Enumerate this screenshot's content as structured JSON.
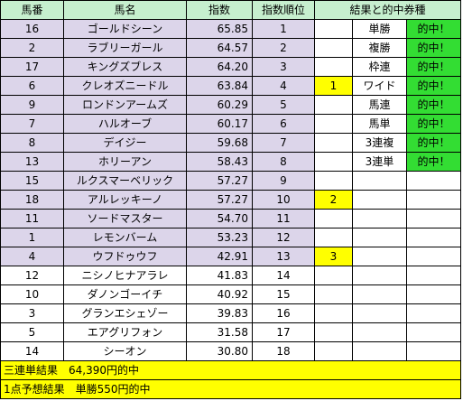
{
  "headers": [
    "馬番",
    "馬名",
    "指数",
    "指数順位",
    "結果と的中券種"
  ],
  "rows": [
    {
      "no": "16",
      "name": "ゴールドシーン",
      "idx": "65.85",
      "rank": "1",
      "mark": "",
      "bet": "単勝",
      "hit": "的中！"
    },
    {
      "no": "2",
      "name": "ラブリーガール",
      "idx": "64.57",
      "rank": "2",
      "mark": "",
      "bet": "複勝",
      "hit": "的中！"
    },
    {
      "no": "17",
      "name": "キングズブレス",
      "idx": "64.20",
      "rank": "3",
      "mark": "",
      "bet": "枠連",
      "hit": "的中！"
    },
    {
      "no": "6",
      "name": "クレオズニードル",
      "idx": "63.84",
      "rank": "4",
      "mark": "1",
      "bet": "ワイド",
      "hit": "的中！"
    },
    {
      "no": "9",
      "name": "ロンドンアームズ",
      "idx": "60.29",
      "rank": "5",
      "mark": "",
      "bet": "馬連",
      "hit": "的中！"
    },
    {
      "no": "7",
      "name": "ハルオーブ",
      "idx": "60.17",
      "rank": "6",
      "mark": "",
      "bet": "馬単",
      "hit": "的中！"
    },
    {
      "no": "8",
      "name": "デイジー",
      "idx": "59.68",
      "rank": "7",
      "mark": "",
      "bet": "3連複",
      "hit": "的中！"
    },
    {
      "no": "13",
      "name": "ホリーアン",
      "idx": "58.43",
      "rank": "8",
      "mark": "",
      "bet": "3連単",
      "hit": "的中！"
    },
    {
      "no": "15",
      "name": "ルクスマーベリック",
      "idx": "57.27",
      "rank": "9",
      "mark": "",
      "bet": "",
      "hit": ""
    },
    {
      "no": "18",
      "name": "アルレッキーノ",
      "idx": "57.27",
      "rank": "10",
      "mark": "2",
      "bet": "",
      "hit": ""
    },
    {
      "no": "11",
      "name": "ソードマスター",
      "idx": "54.70",
      "rank": "11",
      "mark": "",
      "bet": "",
      "hit": ""
    },
    {
      "no": "1",
      "name": "レモンバーム",
      "idx": "53.23",
      "rank": "12",
      "mark": "",
      "bet": "",
      "hit": ""
    },
    {
      "no": "4",
      "name": "ウフドゥウフ",
      "idx": "42.91",
      "rank": "13",
      "mark": "3",
      "bet": "",
      "hit": ""
    },
    {
      "no": "12",
      "name": "ニシノヒナアラレ",
      "idx": "41.83",
      "rank": "14",
      "mark": "",
      "bet": "",
      "hit": ""
    },
    {
      "no": "10",
      "name": "ダノンゴーイチ",
      "idx": "40.92",
      "rank": "15",
      "mark": "",
      "bet": "",
      "hit": ""
    },
    {
      "no": "3",
      "name": "グランエシェゾー",
      "idx": "39.83",
      "rank": "16",
      "mark": "",
      "bet": "",
      "hit": ""
    },
    {
      "no": "5",
      "name": "エアグリフォン",
      "idx": "31.58",
      "rank": "17",
      "mark": "",
      "bet": "",
      "hit": ""
    },
    {
      "no": "14",
      "name": "シーオン",
      "idx": "30.80",
      "rank": "18",
      "mark": "",
      "bet": "",
      "hit": ""
    }
  ],
  "summary": [
    "三連単結果　64,390円的中",
    "1点予想結果　単勝550円的中"
  ],
  "colors": {
    "header_bg": "#c6efce",
    "highlight_rows_bg": "#dcd5ea",
    "mark_bg": "#ffff00",
    "hit_bg": "#33dd33",
    "orange_index": "#ff9900",
    "cyan_index": "#33ffff"
  }
}
